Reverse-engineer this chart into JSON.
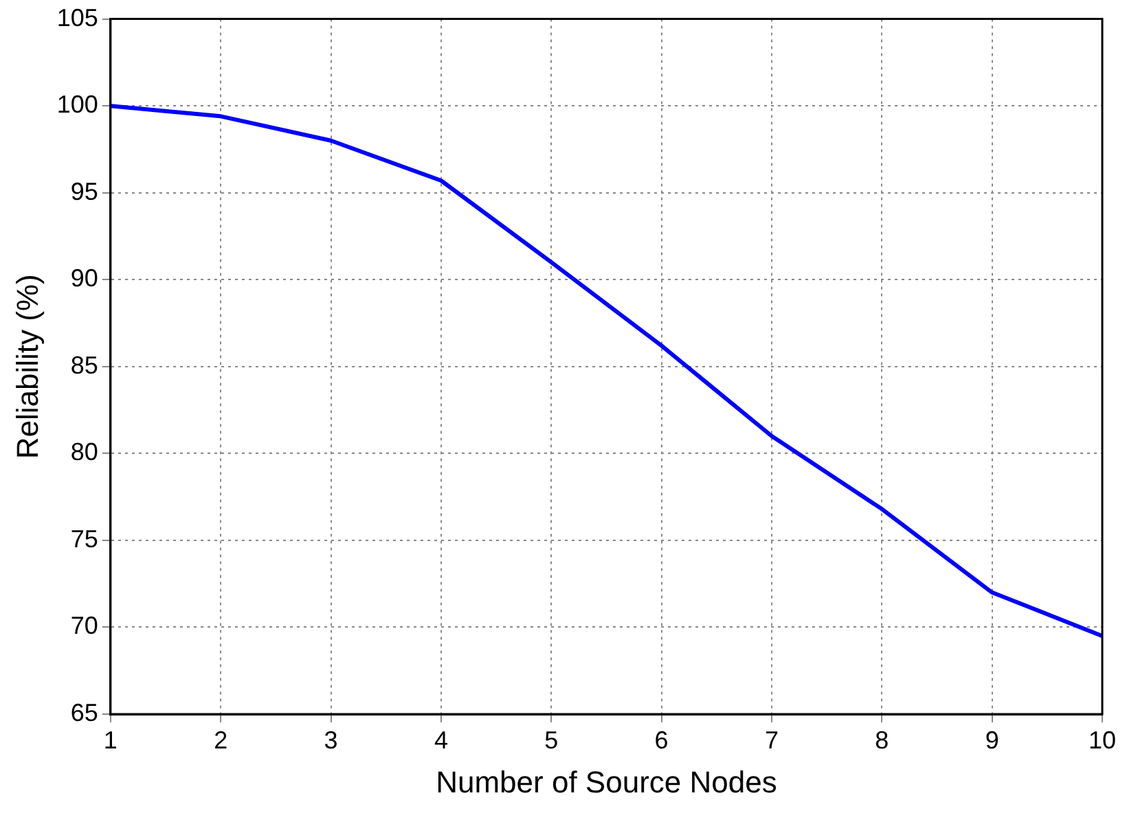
{
  "chart_data": {
    "type": "line",
    "xlabel": "Number of Source Nodes",
    "ylabel": "Reliability (%)",
    "x": [
      1,
      2,
      3,
      4,
      5,
      6,
      7,
      8,
      9,
      10
    ],
    "series": [
      {
        "color": "#0000ff",
        "values": [
          100,
          99.4,
          98,
          95.7,
          91,
          86.2,
          81,
          76.8,
          72,
          69.5
        ]
      }
    ],
    "xlim": [
      1,
      10
    ],
    "xticks": [
      1,
      2,
      3,
      4,
      5,
      6,
      7,
      8,
      9,
      10
    ],
    "ylim": [
      65,
      105
    ],
    "yticks": [
      65,
      70,
      75,
      80,
      85,
      90,
      95,
      100,
      105
    ],
    "grid": true,
    "legend": false,
    "marker": "none",
    "line_style": "solid"
  }
}
